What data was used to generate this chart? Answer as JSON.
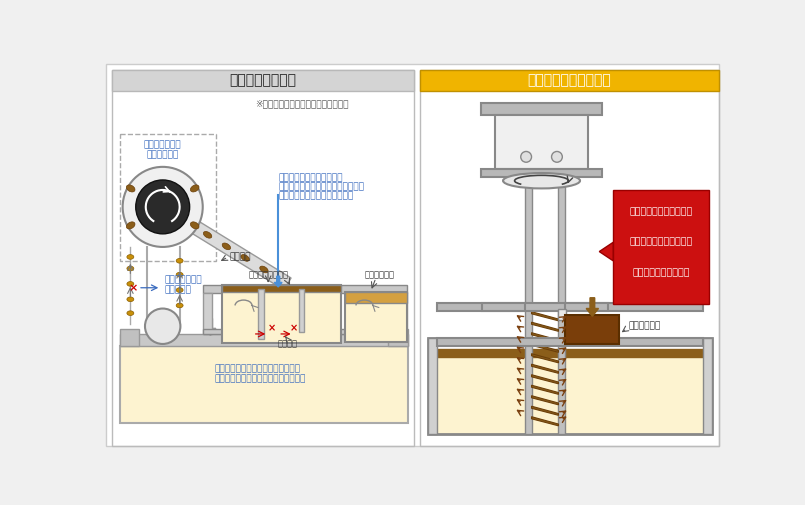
{
  "bg_color": "#f0f0f0",
  "panel_bg": "#ffffff",
  "left_header_bg": "#d4d4d4",
  "left_header_text": "一般的なベルト式",
  "left_subtitle": "※分離タンクが機能しなくなった場合",
  "right_header_bg": "#f0b400",
  "right_header_text": "リックス浮上油回収機",
  "coolant_fill": "#fdf3d0",
  "oil_brown": "#8B5E1A",
  "dark_oil": "#6B3F0A",
  "gray_med": "#aaaaaa",
  "gray_light": "#cccccc",
  "gray_dark": "#888888",
  "blue_text": "#3a6bbf",
  "blue_line": "#4a90d9",
  "red_box": "#cc1010",
  "arrow_brown": "#7a4010",
  "note_blue": "#3a6bbf"
}
